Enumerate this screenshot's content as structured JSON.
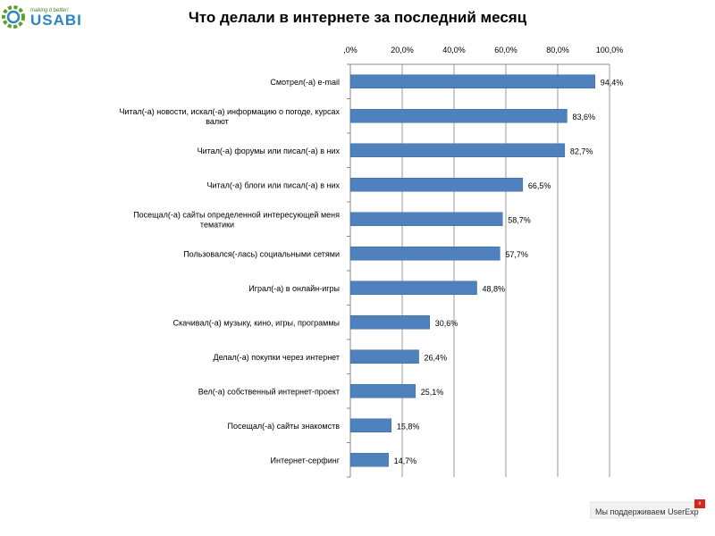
{
  "logo": {
    "slogan": "making it better!",
    "brand": "USABI",
    "accent": "#2e86c1",
    "gear_color": "#5aa02c",
    "icon": "gear-icon"
  },
  "footer": {
    "text": "Мы поддерживаем UserExp",
    "badge_label": "x",
    "color": "#d7261e"
  },
  "chart_data": {
    "type": "bar",
    "orientation": "horizontal",
    "title": "Что делали в интернете за последний месяц",
    "xlabel": "",
    "ylabel": "",
    "xlim": [
      0,
      100
    ],
    "grid": true,
    "x_ticks": [
      ",0%",
      "20,0%",
      "40,0%",
      "60,0%",
      "80,0%",
      "100,0%"
    ],
    "x_tick_values": [
      0,
      20,
      40,
      60,
      80,
      100
    ],
    "bar_color": "#4f81bd",
    "categories": [
      [
        "Смотрел(-а) e-mail"
      ],
      [
        "Читал(-а) новости, искал(-а) информацию о погоде, курсах",
        "валют"
      ],
      [
        "Читал(-а) форумы или писал(-а) в них"
      ],
      [
        "Читал(-а) блоги или писал(-а) в них"
      ],
      [
        "Посещал(-а) сайты определенной интересующей меня",
        "тематики"
      ],
      [
        "Пользовался(-лась) социальными сетями"
      ],
      [
        "Играл(-а) в онлайн-игры"
      ],
      [
        "Скачивал(-а) музыку, кино, игры, программы"
      ],
      [
        "Делал(-а) покупки через интернет"
      ],
      [
        "Вел(-а) собственный интернет-проект"
      ],
      [
        "Посещал(-а) сайты знакомств"
      ],
      [
        "Интернет-серфинг"
      ]
    ],
    "values": [
      94.4,
      83.6,
      82.7,
      66.5,
      58.7,
      57.7,
      48.8,
      30.6,
      26.4,
      25.1,
      15.8,
      14.7
    ],
    "value_labels": [
      "94,4%",
      "83,6%",
      "82,7%",
      "66,5%",
      "58,7%",
      "57,7%",
      "48,8%",
      "30,6%",
      "26,4%",
      "25,1%",
      "15,8%",
      "14,7%"
    ]
  }
}
